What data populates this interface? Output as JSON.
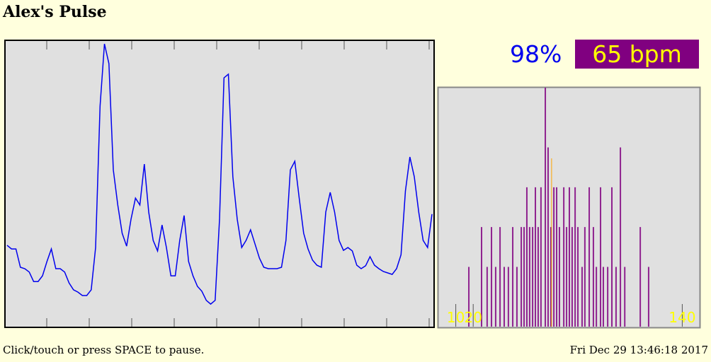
{
  "header": {
    "title": "Alex's Pulse"
  },
  "readout": {
    "spo2": "98%",
    "bpm": "65 bpm"
  },
  "footer": {
    "hint": "Click/touch or press SPACE to pause.",
    "timestamp": "Fri Dec 29 13:46:18 2017"
  },
  "chart_data": [
    {
      "type": "line",
      "color": "#0000ee",
      "ylim": [
        0,
        100
      ],
      "values": [
        28.5,
        27.2,
        27.2,
        20.8,
        20.3,
        19.1,
        15.8,
        15.8,
        17.8,
        22.8,
        27.2,
        20.3,
        20.3,
        19.1,
        15.3,
        12.9,
        12.1,
        10.9,
        10.9,
        12.9,
        27.7,
        77.2,
        99.0,
        92.1,
        54.9,
        42.6,
        32.7,
        28.2,
        37.6,
        45.0,
        42.6,
        56.9,
        40.1,
        30.2,
        26.5,
        35.6,
        27.7,
        17.8,
        17.8,
        30.2,
        38.9,
        22.8,
        17.8,
        14.1,
        12.4,
        9.2,
        7.9,
        9.2,
        37.6,
        87.1,
        88.4,
        52.5,
        37.6,
        27.7,
        30.2,
        33.9,
        29.0,
        24.0,
        20.8,
        20.3,
        20.3,
        20.3,
        20.8,
        30.2,
        54.9,
        57.9,
        45.0,
        32.7,
        27.2,
        23.3,
        21.5,
        20.8,
        40.1,
        47.0,
        40.1,
        30.2,
        26.7,
        27.7,
        26.5,
        21.5,
        20.3,
        21.3,
        24.5,
        21.5,
        20.3,
        19.3,
        18.8,
        18.3,
        20.3,
        25.2,
        47.5,
        59.4,
        52.5,
        40.1,
        30.2,
        27.7,
        39.4
      ]
    },
    {
      "type": "bar",
      "color": "#800080",
      "marker": 65,
      "marker_color": "#ffa500",
      "xlim": [
        0,
        150
      ],
      "ylim": [
        0,
        6
      ],
      "xticks": [
        10,
        20,
        140
      ],
      "x": [
        17.5,
        24.8,
        28,
        30.5,
        32.9,
        35.4,
        37.8,
        40.2,
        42.7,
        45.1,
        47.6,
        49.2,
        50.8,
        52.4,
        54.1,
        55.7,
        57.3,
        58.9,
        61.4,
        63,
        64.6,
        66.3,
        67.9,
        69.5,
        72,
        73.6,
        75.2,
        76.8,
        78.5,
        80.1,
        82.5,
        84.1,
        86.6,
        89,
        90.7,
        93.1,
        94.7,
        97.2,
        99.6,
        102,
        104.5,
        107,
        115.9,
        120.7
      ],
      "values": [
        1.5,
        2.5,
        1.5,
        2.5,
        1.5,
        2.5,
        1.5,
        1.5,
        2.5,
        1.5,
        2.5,
        2.5,
        3.5,
        2.5,
        2.5,
        3.5,
        2.5,
        3.5,
        6,
        4.5,
        2.5,
        3.5,
        3.5,
        2.5,
        3.5,
        2.5,
        3.5,
        2.5,
        3.5,
        2.5,
        1.5,
        2.5,
        3.5,
        2.5,
        1.5,
        3.5,
        1.5,
        1.5,
        3.5,
        1.5,
        4.5,
        1.5,
        2.5,
        1.5
      ]
    }
  ]
}
